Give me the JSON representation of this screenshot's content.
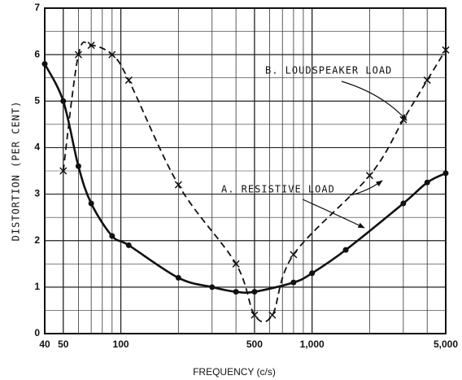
{
  "chart_data": {
    "type": "line",
    "xlabel": "FREQUENCY (c/s)",
    "ylabel": "DISTORTION (PER CENT)",
    "xscale": "log",
    "xlim": [
      40,
      5000
    ],
    "ylim": [
      0,
      7
    ],
    "xticks": [
      40,
      50,
      100,
      500,
      {
        "value": 1000,
        "label": "1,000"
      },
      {
        "value": 5000,
        "label": "5,000"
      }
    ],
    "yticks": [
      0,
      1,
      2,
      3,
      4,
      5,
      6,
      7
    ],
    "xminor": [
      60,
      70,
      80,
      90,
      200,
      300,
      400,
      600,
      700,
      800,
      900,
      2000,
      3000,
      4000
    ],
    "yminor": [
      0.5,
      1.5,
      2.5,
      3.5,
      4.5,
      5.5,
      6.5
    ],
    "grid": true,
    "series": [
      {
        "name": "A. RESISTIVE LOAD",
        "color": "#111111",
        "style": "solid",
        "marker": "dot",
        "x": [
          40,
          50,
          60,
          70,
          90,
          110,
          200,
          300,
          400,
          500,
          800,
          1000,
          1500,
          3000,
          4000,
          5000
        ],
        "values": [
          5.8,
          5.0,
          3.6,
          2.8,
          2.1,
          1.9,
          1.2,
          1.0,
          0.9,
          0.9,
          1.1,
          1.3,
          1.8,
          2.8,
          3.25,
          3.45
        ]
      },
      {
        "name": "B. LOUDSPEAKER LOAD",
        "color": "#111111",
        "style": "dashed",
        "marker": "cross",
        "x": [
          50,
          60,
          70,
          90,
          110,
          200,
          400,
          500,
          620,
          800,
          2000,
          3000,
          4000,
          5000
        ],
        "values": [
          3.5,
          6.0,
          6.2,
          6.0,
          5.45,
          3.2,
          1.5,
          0.4,
          0.4,
          1.7,
          3.4,
          4.6,
          5.45,
          6.1
        ]
      }
    ]
  }
}
